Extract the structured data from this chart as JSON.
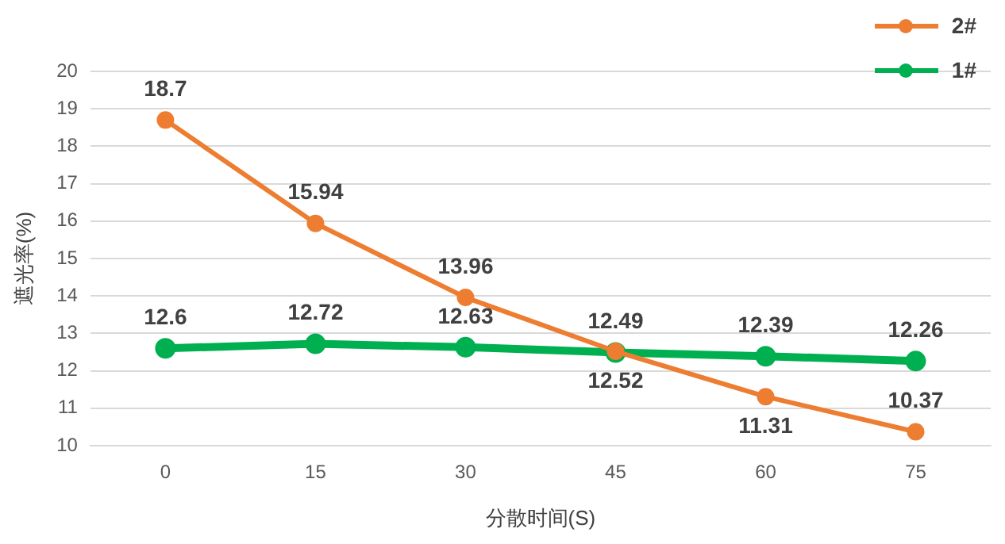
{
  "chart_data": {
    "type": "line",
    "xlabel": "分散时间(S)",
    "ylabel": "遮光率(%)",
    "categories": [
      "0",
      "15",
      "30",
      "45",
      "60",
      "75"
    ],
    "series": [
      {
        "name": "2#",
        "color": "#ed7d31",
        "values": [
          18.7,
          15.94,
          13.96,
          12.52,
          11.31,
          10.37
        ]
      },
      {
        "name": "1#",
        "color": "#00b050",
        "values": [
          12.6,
          12.72,
          12.63,
          12.49,
          12.39,
          12.26
        ]
      }
    ],
    "ylim": [
      10,
      20
    ],
    "yticks": [
      10,
      11,
      12,
      13,
      14,
      15,
      16,
      17,
      18,
      19,
      20
    ],
    "grid": "y",
    "legend": "top right",
    "marker": "circle",
    "line_style": "solid",
    "data_labels": true
  }
}
